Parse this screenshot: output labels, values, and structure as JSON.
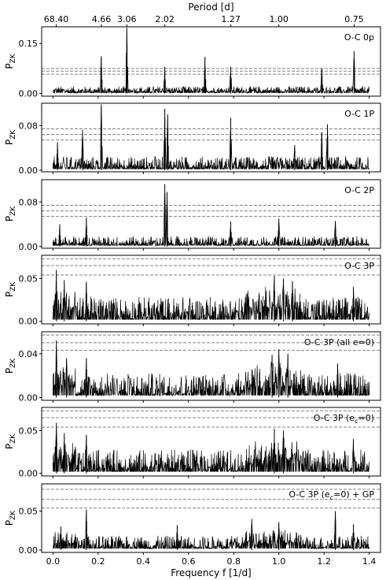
{
  "top_axis": {
    "label": "Period [d]",
    "ticks": [
      {
        "label": "68.40",
        "freq": 0.0146
      },
      {
        "label": "4.66",
        "freq": 0.2146
      },
      {
        "label": "3.06",
        "freq": 0.3268
      },
      {
        "label": "2.02",
        "freq": 0.495
      },
      {
        "label": "1.27",
        "freq": 0.7874
      },
      {
        "label": "1.00",
        "freq": 1.0
      },
      {
        "label": "0.75",
        "freq": 1.3333
      }
    ]
  },
  "x_axis": {
    "label": "Frequency f [1/d]",
    "ticks": [
      0.0,
      0.2,
      0.4,
      0.6,
      0.8,
      1.0,
      1.2,
      1.4
    ],
    "tick_labels": [
      "0.0",
      "0.2",
      "0.4",
      "0.6",
      "0.8",
      "1.0",
      "1.2",
      "1.4"
    ],
    "range": [
      -0.05,
      1.45
    ]
  },
  "chart_data": [
    {
      "type": "line",
      "title": "O-C 0p",
      "ylabel": "P",
      "ylabel_sub": "ZK",
      "ylim": [
        -0.008,
        0.2
      ],
      "yticks": [
        0.0,
        0.15
      ],
      "ytick_labels": [
        "0.00",
        "0.15"
      ],
      "fap_levels": [
        0.058,
        0.067,
        0.075
      ],
      "noise_floor": 0.012,
      "noise_amp": 0.018,
      "peaks": [
        {
          "x": 0.214,
          "y": 0.112
        },
        {
          "x": 0.327,
          "y": 0.197
        },
        {
          "x": 0.495,
          "y": 0.08
        },
        {
          "x": 0.673,
          "y": 0.11
        },
        {
          "x": 0.787,
          "y": 0.08
        },
        {
          "x": 1.19,
          "y": 0.075
        },
        {
          "x": 1.333,
          "y": 0.127
        }
      ]
    },
    {
      "type": "line",
      "title": "O-C 1P",
      "ylabel": "P",
      "ylabel_sub": "ZK",
      "ylim": [
        -0.003,
        0.12
      ],
      "yticks": [
        0.0,
        0.08
      ],
      "ytick_labels": [
        "0.00",
        "0.08"
      ],
      "fap_levels": [
        0.054,
        0.064,
        0.074
      ],
      "noise_floor": 0.009,
      "noise_amp": 0.022,
      "peaks": [
        {
          "x": 0.02,
          "y": 0.05
        },
        {
          "x": 0.131,
          "y": 0.072
        },
        {
          "x": 0.214,
          "y": 0.118
        },
        {
          "x": 0.495,
          "y": 0.11
        },
        {
          "x": 0.508,
          "y": 0.1
        },
        {
          "x": 0.787,
          "y": 0.094
        },
        {
          "x": 1.07,
          "y": 0.045
        },
        {
          "x": 1.19,
          "y": 0.068
        },
        {
          "x": 1.215,
          "y": 0.082
        }
      ]
    },
    {
      "type": "line",
      "title": "O-C 2P",
      "ylabel": "P",
      "ylabel_sub": "ZK",
      "ylim": [
        -0.003,
        0.12
      ],
      "yticks": [
        0.0,
        0.08
      ],
      "ytick_labels": [
        "0.00",
        "0.08"
      ],
      "fap_levels": [
        0.054,
        0.064,
        0.074
      ],
      "noise_floor": 0.008,
      "noise_amp": 0.016,
      "peaks": [
        {
          "x": 0.03,
          "y": 0.04
        },
        {
          "x": 0.148,
          "y": 0.052
        },
        {
          "x": 0.495,
          "y": 0.112
        },
        {
          "x": 0.505,
          "y": 0.098
        },
        {
          "x": 0.787,
          "y": 0.045
        },
        {
          "x": 1.0,
          "y": 0.05
        },
        {
          "x": 1.25,
          "y": 0.046
        }
      ]
    },
    {
      "type": "line",
      "title": "O-C 3P",
      "ylabel": "P",
      "ylabel_sub": "ZK",
      "ylim": [
        -0.003,
        0.077
      ],
      "yticks": [
        0.0,
        0.05
      ],
      "ytick_labels": [
        "0.00",
        "0.05"
      ],
      "fap_levels": [
        0.054,
        0.065,
        0.073
      ],
      "noise_floor": 0.01,
      "noise_amp": 0.026,
      "peaks": [
        {
          "x": 0.015,
          "y": 0.06
        },
        {
          "x": 0.05,
          "y": 0.048
        },
        {
          "x": 0.148,
          "y": 0.046
        },
        {
          "x": 0.98,
          "y": 0.053
        },
        {
          "x": 1.02,
          "y": 0.05
        },
        {
          "x": 1.06,
          "y": 0.047
        },
        {
          "x": 1.33,
          "y": 0.04
        }
      ]
    },
    {
      "type": "line",
      "title": "O-C 3P (all e=0)",
      "ylabel": "P",
      "ylabel_sub": "ZK",
      "ylim": [
        -0.0025,
        0.06
      ],
      "yticks": [
        0.0,
        0.04
      ],
      "ytick_labels": [
        "0.00",
        "0.04"
      ],
      "fap_levels": [
        0.043,
        0.05,
        0.057
      ],
      "noise_floor": 0.008,
      "noise_amp": 0.02,
      "peaks": [
        {
          "x": 0.015,
          "y": 0.052
        },
        {
          "x": 0.06,
          "y": 0.036
        },
        {
          "x": 0.148,
          "y": 0.036
        },
        {
          "x": 0.97,
          "y": 0.039
        },
        {
          "x": 1.0,
          "y": 0.044
        },
        {
          "x": 1.04,
          "y": 0.04
        },
        {
          "x": 1.26,
          "y": 0.031
        }
      ]
    },
    {
      "type": "line",
      "title": "O-C 3P (e",
      "title_sub": "c",
      "title_end": "=0)",
      "ylabel": "P",
      "ylabel_sub": "ZK",
      "ylim": [
        -0.003,
        0.077
      ],
      "yticks": [
        0.0,
        0.05
      ],
      "ytick_labels": [
        "0.00",
        "0.05"
      ],
      "fap_levels": [
        0.054,
        0.065,
        0.073
      ],
      "noise_floor": 0.01,
      "noise_amp": 0.025,
      "peaks": [
        {
          "x": 0.015,
          "y": 0.059
        },
        {
          "x": 0.05,
          "y": 0.047
        },
        {
          "x": 0.148,
          "y": 0.045
        },
        {
          "x": 0.98,
          "y": 0.052
        },
        {
          "x": 1.02,
          "y": 0.05
        },
        {
          "x": 1.33,
          "y": 0.04
        }
      ]
    },
    {
      "type": "line",
      "title": "O-C 3P (e",
      "title_sub": "c",
      "title_end": "=0) + GP",
      "ylabel": "P",
      "ylabel_sub": "ZK",
      "ylim": [
        -0.003,
        0.085
      ],
      "yticks": [
        0.0,
        0.05
      ],
      "ytick_labels": [
        "0.00",
        "0.05"
      ],
      "fap_levels": [
        0.054,
        0.065,
        0.078
      ],
      "noise_floor": 0.008,
      "noise_amp": 0.016,
      "peaks": [
        {
          "x": 0.035,
          "y": 0.03
        },
        {
          "x": 0.148,
          "y": 0.052
        },
        {
          "x": 0.55,
          "y": 0.032
        },
        {
          "x": 0.88,
          "y": 0.04
        },
        {
          "x": 1.0,
          "y": 0.036
        },
        {
          "x": 1.25,
          "y": 0.05
        },
        {
          "x": 1.33,
          "y": 0.033
        }
      ]
    }
  ]
}
